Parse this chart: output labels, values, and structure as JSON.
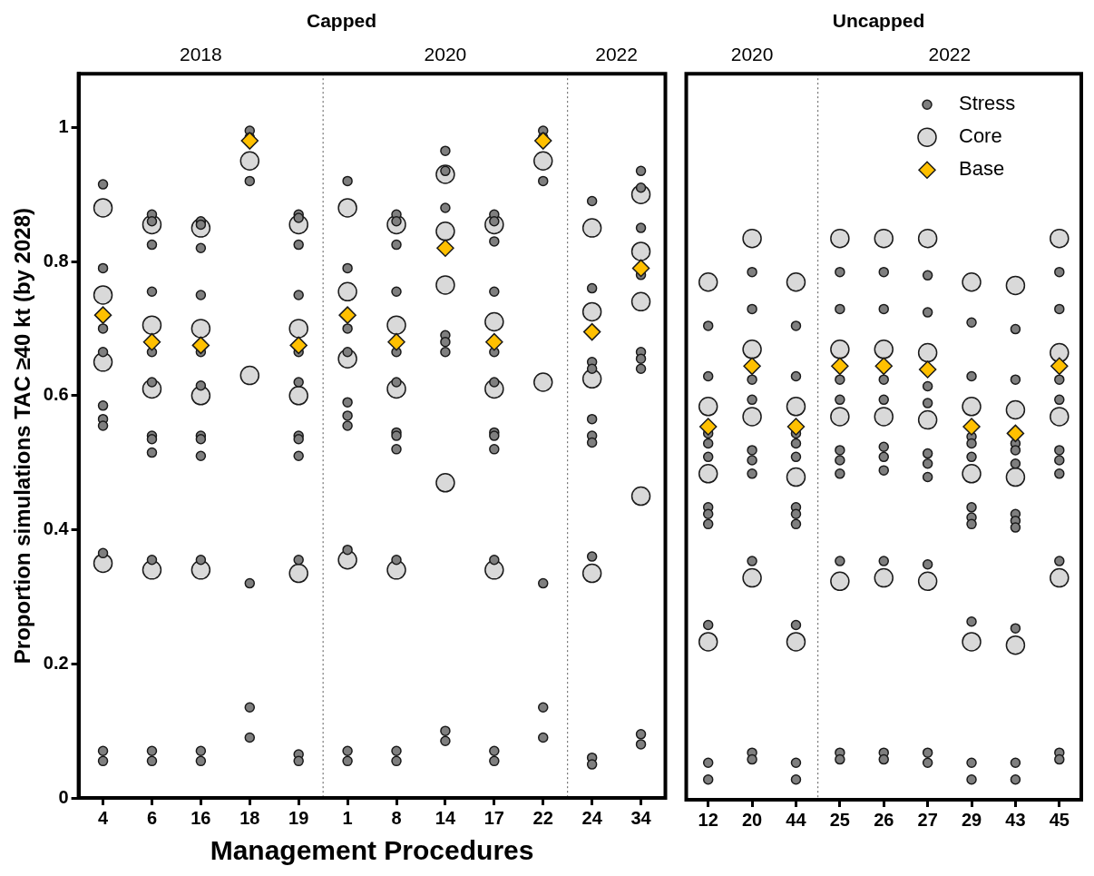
{
  "chart_data": [
    {
      "type": "scatter",
      "title": "Capped",
      "xlabel": "Management Procedures",
      "ylabel": "Proportion simulations TAC ≥40 kt (by 2028)",
      "categories": [
        "4",
        "6",
        "16",
        "18",
        "19",
        "1",
        "8",
        "14",
        "17",
        "22",
        "24",
        "34"
      ],
      "ylim": [
        0,
        1.08
      ],
      "yticks": [
        0,
        0.2,
        0.4,
        0.6,
        0.8,
        1
      ],
      "annotations": [
        "2018",
        "2020",
        "2022"
      ],
      "series": [
        {
          "color": "#7f7f7f",
          "marker": "circle",
          "x": [
            "4",
            "4",
            "4",
            "4",
            "4",
            "4",
            "4",
            "4",
            "4",
            "4",
            "6",
            "6",
            "6",
            "6",
            "6",
            "6",
            "6",
            "6",
            "6",
            "6",
            "6",
            "6",
            "16",
            "16",
            "16",
            "16",
            "16",
            "16",
            "16",
            "16",
            "16",
            "16",
            "16",
            "16",
            "18",
            "18",
            "18",
            "18",
            "18",
            "18",
            "19",
            "19",
            "19",
            "19",
            "19",
            "19",
            "19",
            "19",
            "19",
            "19",
            "19",
            "19",
            "1",
            "1",
            "1",
            "1",
            "1",
            "1",
            "1",
            "1",
            "1",
            "1",
            "8",
            "8",
            "8",
            "8",
            "8",
            "8",
            "8",
            "8",
            "8",
            "8",
            "8",
            "8",
            "14",
            "14",
            "14",
            "14",
            "14",
            "14",
            "14",
            "14",
            "14",
            "17",
            "17",
            "17",
            "17",
            "17",
            "17",
            "17",
            "17",
            "17",
            "17",
            "17",
            "17",
            "22",
            "22",
            "22",
            "22",
            "22",
            "22",
            "24",
            "24",
            "24",
            "24",
            "24",
            "24",
            "24",
            "24",
            "24",
            "24",
            "34",
            "34",
            "34",
            "34",
            "34",
            "34",
            "34",
            "34",
            "34"
          ],
          "values": [
            0.915,
            0.79,
            0.7,
            0.665,
            0.585,
            0.565,
            0.555,
            0.365,
            0.07,
            0.055,
            0.87,
            0.86,
            0.825,
            0.755,
            0.665,
            0.62,
            0.54,
            0.535,
            0.515,
            0.355,
            0.07,
            0.055,
            0.86,
            0.855,
            0.82,
            0.75,
            0.665,
            0.615,
            0.54,
            0.535,
            0.51,
            0.355,
            0.07,
            0.055,
            0.995,
            0.985,
            0.92,
            0.32,
            0.135,
            0.09,
            0.87,
            0.865,
            0.825,
            0.75,
            0.665,
            0.62,
            0.54,
            0.535,
            0.51,
            0.355,
            0.065,
            0.055,
            0.92,
            0.79,
            0.7,
            0.665,
            0.59,
            0.57,
            0.555,
            0.37,
            0.07,
            0.055,
            0.87,
            0.86,
            0.825,
            0.755,
            0.665,
            0.62,
            0.545,
            0.54,
            0.52,
            0.355,
            0.07,
            0.055,
            0.965,
            0.935,
            0.88,
            null,
            0.69,
            0.68,
            0.665,
            0.1,
            0.085,
            0.87,
            0.86,
            0.83,
            0.755,
            0.665,
            0.62,
            0.545,
            0.54,
            0.52,
            0.355,
            0.07,
            0.055,
            0.995,
            0.985,
            0.92,
            0.32,
            0.135,
            0.09,
            0.89,
            0.76,
            0.65,
            0.64,
            0.565,
            0.54,
            0.53,
            0.36,
            0.06,
            0.05,
            0.935,
            0.91,
            0.85,
            0.78,
            0.665,
            0.655,
            0.64,
            0.095,
            0.08
          ]
        },
        {
          "color": "#d9d9d9",
          "marker": "circle",
          "x": [
            "4",
            "4",
            "4",
            "4",
            "6",
            "6",
            "6",
            "6",
            "16",
            "16",
            "16",
            "16",
            "18",
            "18",
            "19",
            "19",
            "19",
            "19",
            "1",
            "1",
            "1",
            "1",
            "8",
            "8",
            "8",
            "8",
            "14",
            "14",
            "14",
            "14",
            "17",
            "17",
            "17",
            "17",
            "22",
            "22",
            "24",
            "24",
            "24",
            "24",
            "34",
            "34",
            "34",
            "34"
          ],
          "values": [
            0.88,
            0.75,
            0.65,
            0.35,
            0.855,
            0.705,
            0.61,
            0.34,
            0.85,
            0.7,
            0.6,
            0.34,
            0.95,
            0.63,
            0.855,
            0.7,
            0.6,
            0.335,
            0.88,
            0.755,
            0.655,
            0.355,
            0.855,
            0.705,
            0.61,
            0.34,
            0.93,
            0.845,
            0.765,
            0.47,
            0.855,
            0.71,
            0.61,
            0.34,
            0.95,
            0.62,
            0.85,
            0.725,
            0.625,
            0.335,
            0.9,
            0.815,
            0.74,
            0.45
          ]
        },
        {
          "color": "#ffc000",
          "marker": "diamond",
          "x": [
            "4",
            "6",
            "16",
            "18",
            "19",
            "1",
            "8",
            "14",
            "17",
            "22",
            "24",
            "34"
          ],
          "values": [
            0.72,
            0.68,
            0.675,
            0.98,
            0.675,
            0.72,
            0.68,
            0.82,
            0.68,
            0.98,
            0.695,
            0.79
          ]
        }
      ]
    },
    {
      "type": "scatter",
      "title": "Uncapped",
      "tick_labels": "x",
      "categories": [
        "12",
        "20",
        "44",
        "25",
        "26",
        "27",
        "29",
        "43",
        "45"
      ],
      "ylim": [
        0,
        1.08
      ],
      "legend": "top right",
      "annotations": [
        "2020",
        "2022"
      ],
      "series": [
        {
          "name": "Stress",
          "color": "#7f7f7f",
          "marker": "circle",
          "x": [
            "12",
            "12",
            "12",
            "12",
            "12",
            "12",
            "12",
            "12",
            "12",
            "12",
            "12",
            "20",
            "20",
            "20",
            "20",
            "20",
            "20",
            "20",
            "20",
            "20",
            "20",
            "44",
            "44",
            "44",
            "44",
            "44",
            "44",
            "44",
            "44",
            "44",
            "44",
            "44",
            "25",
            "25",
            "25",
            "25",
            "25",
            "25",
            "25",
            "25",
            "25",
            "25",
            "26",
            "26",
            "26",
            "26",
            "26",
            "26",
            "26",
            "26",
            "26",
            "26",
            "27",
            "27",
            "27",
            "27",
            "27",
            "27",
            "27",
            "27",
            "27",
            "27",
            "29",
            "29",
            "29",
            "29",
            "29",
            "29",
            "29",
            "29",
            "29",
            "29",
            "29",
            "43",
            "43",
            "43",
            "43",
            "43",
            "43",
            "43",
            "43",
            "43",
            "43",
            "43",
            "45",
            "45",
            "45",
            "45",
            "45",
            "45",
            "45",
            "45",
            "45",
            "45"
          ],
          "values": [
            0.705,
            0.63,
            0.545,
            0.53,
            0.51,
            0.435,
            0.425,
            0.41,
            0.26,
            0.055,
            0.03,
            0.785,
            0.73,
            0.625,
            0.595,
            0.52,
            0.505,
            0.485,
            0.355,
            0.07,
            0.06,
            0.705,
            0.63,
            0.545,
            0.53,
            0.51,
            0.435,
            0.425,
            0.41,
            0.26,
            0.055,
            0.03,
            0.785,
            0.73,
            0.625,
            0.595,
            0.52,
            0.505,
            0.485,
            0.355,
            0.07,
            0.06,
            0.785,
            0.73,
            0.625,
            0.595,
            0.525,
            0.51,
            0.49,
            0.355,
            0.07,
            0.06,
            0.78,
            0.725,
            0.615,
            0.59,
            0.515,
            0.5,
            0.48,
            0.35,
            0.07,
            0.055,
            0.71,
            0.63,
            0.54,
            0.53,
            0.51,
            0.435,
            0.42,
            0.41,
            0.265,
            0.055,
            0.03,
            0.7,
            0.625,
            0.53,
            0.52,
            0.5,
            0.425,
            0.415,
            0.405,
            0.255,
            0.055,
            0.03,
            0.785,
            0.73,
            0.625,
            0.595,
            0.52,
            0.505,
            0.485,
            0.355,
            0.07,
            0.06
          ]
        },
        {
          "name": "Core",
          "color": "#d9d9d9",
          "marker": "circle",
          "x": [
            "12",
            "12",
            "12",
            "12",
            "20",
            "20",
            "20",
            "20",
            "44",
            "44",
            "44",
            "44",
            "25",
            "25",
            "25",
            "25",
            "26",
            "26",
            "26",
            "26",
            "27",
            "27",
            "27",
            "27",
            "29",
            "29",
            "29",
            "29",
            "43",
            "43",
            "43",
            "43",
            "45",
            "45",
            "45",
            "45"
          ],
          "values": [
            0.77,
            0.585,
            0.485,
            0.235,
            0.835,
            0.67,
            0.57,
            0.33,
            0.77,
            0.585,
            0.48,
            0.235,
            0.835,
            0.67,
            0.57,
            0.325,
            0.835,
            0.67,
            0.57,
            0.33,
            0.835,
            0.665,
            0.565,
            0.325,
            0.77,
            0.585,
            0.485,
            0.235,
            0.765,
            0.58,
            0.48,
            0.23,
            0.835,
            0.665,
            0.57,
            0.33
          ]
        },
        {
          "name": "Base",
          "color": "#ffc000",
          "marker": "diamond",
          "x": [
            "12",
            "20",
            "44",
            "25",
            "26",
            "27",
            "29",
            "43",
            "45"
          ],
          "values": [
            0.555,
            0.645,
            0.555,
            0.645,
            0.645,
            0.64,
            0.555,
            0.545,
            0.645
          ]
        }
      ]
    }
  ]
}
